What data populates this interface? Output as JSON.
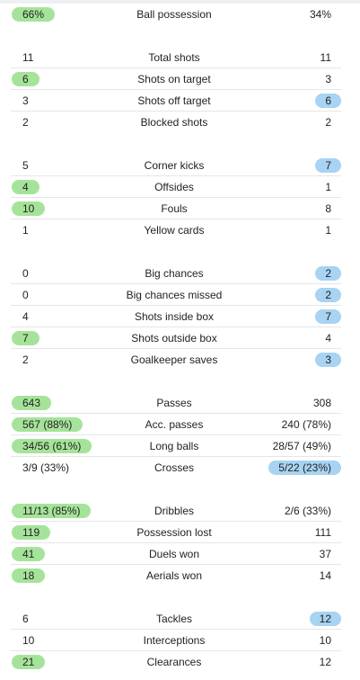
{
  "groups": [
    {
      "rows": [
        {
          "name": "Ball possession",
          "home": "66%",
          "away": "34%",
          "highlight": "home"
        }
      ]
    },
    {
      "rows": [
        {
          "name": "Total shots",
          "home": "11",
          "away": "11",
          "highlight": "none"
        },
        {
          "name": "Shots on target",
          "home": "6",
          "away": "3",
          "highlight": "home"
        },
        {
          "name": "Shots off target",
          "home": "3",
          "away": "6",
          "highlight": "away"
        },
        {
          "name": "Blocked shots",
          "home": "2",
          "away": "2",
          "highlight": "none"
        }
      ]
    },
    {
      "rows": [
        {
          "name": "Corner kicks",
          "home": "5",
          "away": "7",
          "highlight": "away"
        },
        {
          "name": "Offsides",
          "home": "4",
          "away": "1",
          "highlight": "home"
        },
        {
          "name": "Fouls",
          "home": "10",
          "away": "8",
          "highlight": "home"
        },
        {
          "name": "Yellow cards",
          "home": "1",
          "away": "1",
          "highlight": "none"
        }
      ]
    },
    {
      "rows": [
        {
          "name": "Big chances",
          "home": "0",
          "away": "2",
          "highlight": "away"
        },
        {
          "name": "Big chances missed",
          "home": "0",
          "away": "2",
          "highlight": "away"
        },
        {
          "name": "Shots inside box",
          "home": "4",
          "away": "7",
          "highlight": "away"
        },
        {
          "name": "Shots outside box",
          "home": "7",
          "away": "4",
          "highlight": "home"
        },
        {
          "name": "Goalkeeper saves",
          "home": "2",
          "away": "3",
          "highlight": "away"
        }
      ]
    },
    {
      "rows": [
        {
          "name": "Passes",
          "home": "643",
          "away": "308",
          "highlight": "home"
        },
        {
          "name": "Acc. passes",
          "home": "567 (88%)",
          "away": "240 (78%)",
          "highlight": "home"
        },
        {
          "name": "Long balls",
          "home": "34/56 (61%)",
          "away": "28/57 (49%)",
          "highlight": "home"
        },
        {
          "name": "Crosses",
          "home": "3/9 (33%)",
          "away": "5/22 (23%)",
          "highlight": "away"
        }
      ]
    },
    {
      "rows": [
        {
          "name": "Dribbles",
          "home": "11/13 (85%)",
          "away": "2/6 (33%)",
          "highlight": "home"
        },
        {
          "name": "Possession lost",
          "home": "119",
          "away": "111",
          "highlight": "home"
        },
        {
          "name": "Duels won",
          "home": "41",
          "away": "37",
          "highlight": "home"
        },
        {
          "name": "Aerials won",
          "home": "18",
          "away": "14",
          "highlight": "home"
        }
      ]
    },
    {
      "rows": [
        {
          "name": "Tackles",
          "home": "6",
          "away": "12",
          "highlight": "away"
        },
        {
          "name": "Interceptions",
          "home": "10",
          "away": "10",
          "highlight": "none"
        },
        {
          "name": "Clearances",
          "home": "21",
          "away": "12",
          "highlight": "home"
        }
      ]
    }
  ],
  "colors": {
    "home_highlight": "#a6e39a",
    "away_highlight": "#a8d3f2",
    "divider": "#e6e6e6"
  }
}
